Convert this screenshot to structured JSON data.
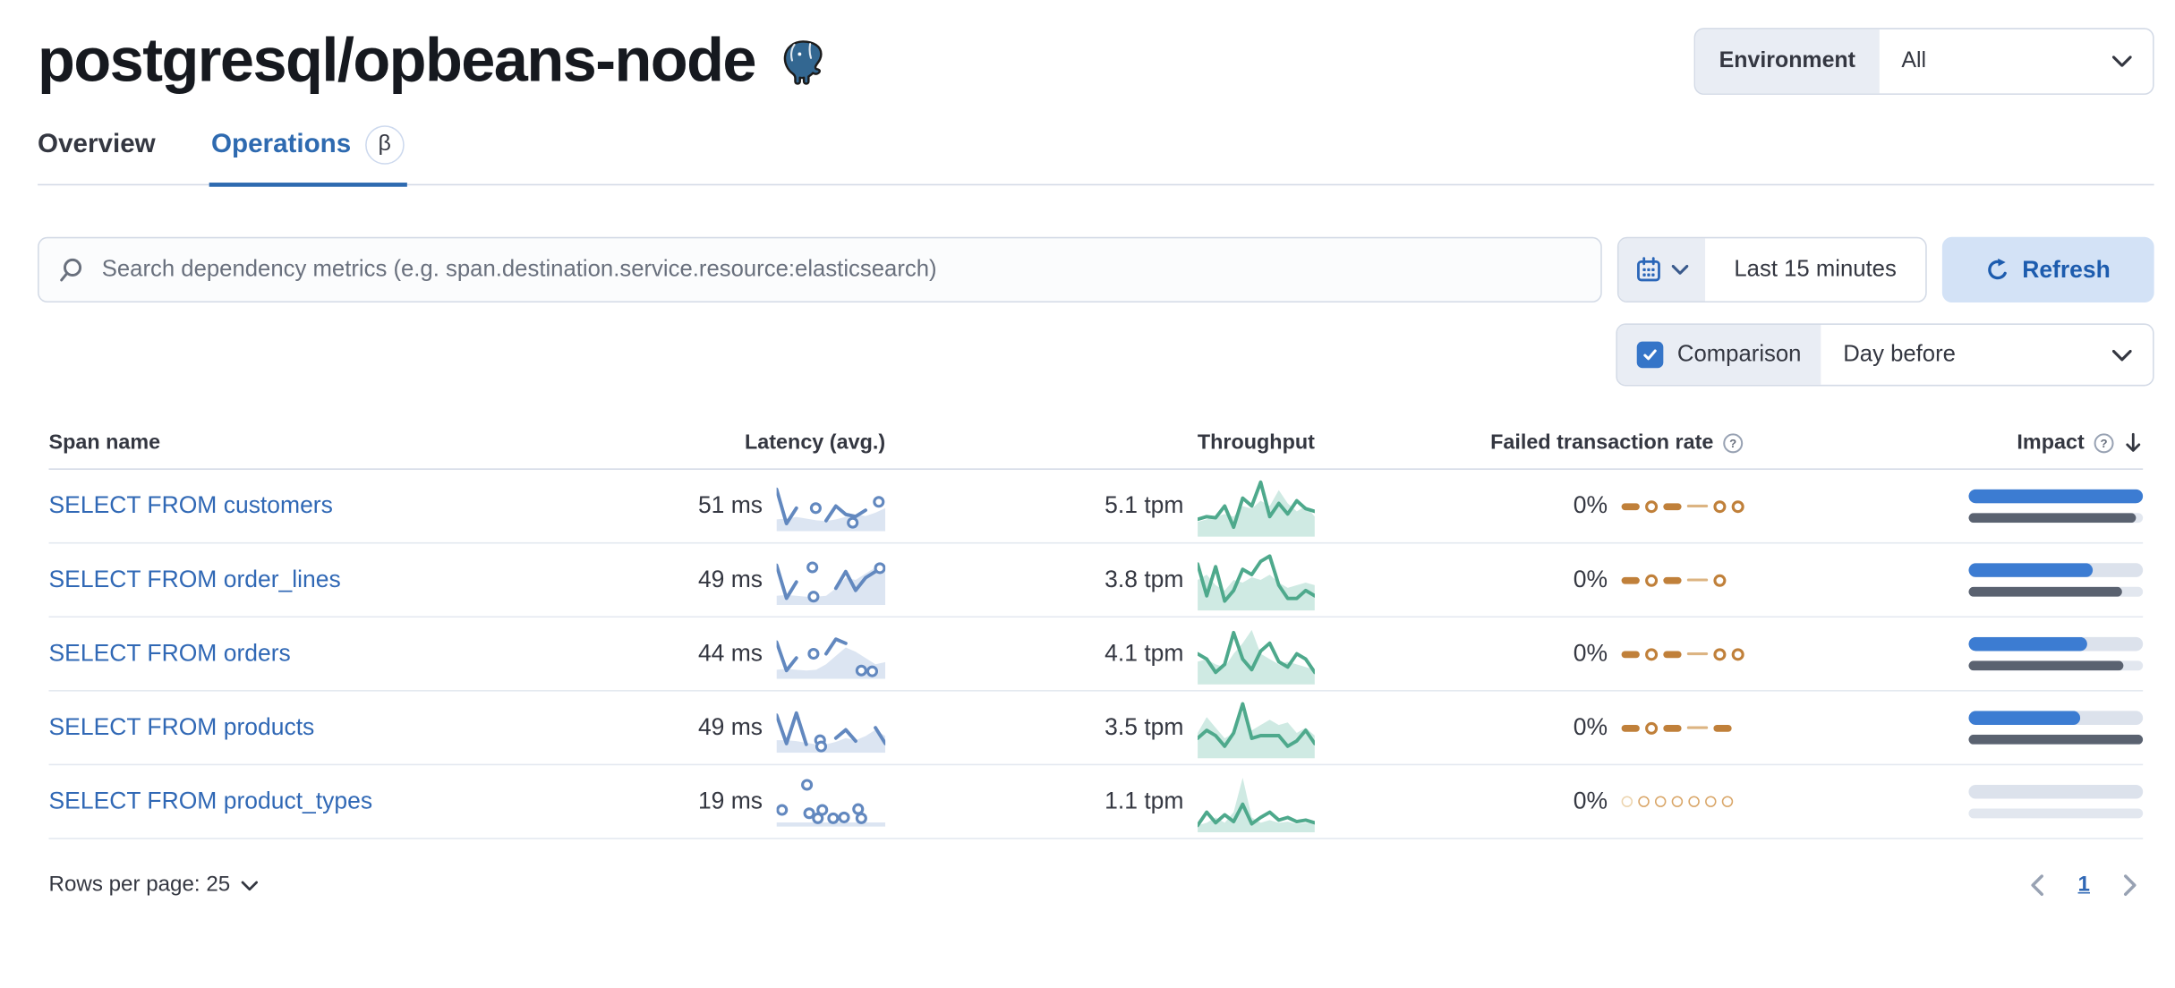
{
  "page": {
    "title": "postgresql/opbeans-node",
    "logo_icon": "postgresql-elephant-icon"
  },
  "environment": {
    "label": "Environment",
    "value": "All"
  },
  "tabs": [
    {
      "label": "Overview",
      "active": false
    },
    {
      "label": "Operations",
      "active": true,
      "badge": "β"
    }
  ],
  "search": {
    "placeholder": "Search dependency metrics (e.g. span.destination.service.resource:elasticsearch)",
    "icon": "search-icon"
  },
  "time": {
    "range": "Last 15 minutes",
    "refresh_label": "Refresh",
    "icons": [
      "calendar-icon",
      "chevron-down-icon",
      "refresh-icon"
    ]
  },
  "comparison": {
    "label": "Comparison",
    "checked": true,
    "value": "Day before"
  },
  "colors": {
    "primary_blue": "#2e6ab0",
    "link_blue": "#3068b5",
    "impact_bar_current": "#3c7cd2",
    "impact_bar_previous": "#5a6270",
    "latency_spark": "#6288bf",
    "throughput_spark": "#54b399",
    "failed_spark": "#c0803a",
    "refresh_bg": "#d3e2f6",
    "prepend_bg": "#e9edf4",
    "border": "#d3dae6"
  },
  "table": {
    "columns": [
      "Span name",
      "Latency (avg.)",
      "Throughput",
      "Failed transaction rate",
      "Impact"
    ],
    "sorted_by": "Impact",
    "sort_direction": "desc",
    "rows": [
      {
        "span_name": "SELECT FROM customers",
        "latency": "51 ms",
        "throughput": "5.1 tpm",
        "failed_rate": "0%",
        "impact_current": 1.0,
        "impact_previous": 0.96,
        "latency_spark": {
          "line": [
            0.9,
            0.08,
            0.45,
            null,
            null,
            0.15,
            0.5,
            0.3,
            0.25,
            0.4,
            null,
            null
          ],
          "area": [
            0.18,
            0.2,
            0.24,
            0.2,
            0.16,
            0.14,
            0.18,
            0.24,
            0.3,
            0.26,
            0.34,
            0.45
          ],
          "dots": [
            [
              0.36,
              0.45
            ],
            [
              0.7,
              0.1
            ],
            [
              0.94,
              0.6
            ]
          ]
        },
        "throughput_spark": {
          "line": [
            0.25,
            0.3,
            0.28,
            0.5,
            0.1,
            0.65,
            0.5,
            0.95,
            0.3,
            0.55,
            0.35,
            0.6,
            0.45,
            0.4
          ],
          "area": [
            0.2,
            0.25,
            0.3,
            0.35,
            0.3,
            0.5,
            0.45,
            0.6,
            0.5,
            0.8,
            0.55,
            0.4,
            0.5,
            0.3
          ]
        },
        "failed_spark": [
          "dash",
          "circle",
          "dash",
          "thin",
          "circle",
          "circle"
        ]
      },
      {
        "span_name": "SELECT FROM order_lines",
        "latency": "49 ms",
        "throughput": "3.8 tpm",
        "failed_rate": "0%",
        "impact_current": 0.71,
        "impact_previous": 0.88,
        "latency_spark": {
          "line": [
            0.85,
            0.06,
            0.45,
            null,
            null,
            null,
            0.3,
            0.7,
            0.25,
            0.55,
            0.7,
            null
          ],
          "area": [
            0.12,
            0.14,
            0.12,
            0.1,
            0.1,
            0.12,
            0.3,
            0.55,
            0.5,
            0.65,
            0.8,
            0.85
          ],
          "dots": [
            [
              0.33,
              0.8
            ],
            [
              0.34,
              0.1
            ],
            [
              0.95,
              0.78
            ]
          ]
        },
        "throughput_spark": {
          "line": [
            0.8,
            0.2,
            0.75,
            0.1,
            0.3,
            0.7,
            0.6,
            0.85,
            0.95,
            0.4,
            0.15,
            0.15,
            0.3,
            0.2
          ],
          "area": [
            0.5,
            0.6,
            0.4,
            0.3,
            0.5,
            0.45,
            0.55,
            0.5,
            0.6,
            0.45,
            0.35,
            0.4,
            0.45,
            0.4
          ]
        },
        "failed_spark": [
          "dash",
          "circle",
          "dash",
          "thin",
          "circle"
        ]
      },
      {
        "span_name": "SELECT FROM orders",
        "latency": "44 ms",
        "throughput": "4.1 tpm",
        "failed_rate": "0%",
        "impact_current": 0.68,
        "impact_previous": 0.89,
        "latency_spark": {
          "line": [
            0.78,
            0.1,
            0.4,
            null,
            null,
            0.5,
            0.85,
            0.75,
            null,
            null,
            null,
            null
          ],
          "area": [
            0.12,
            0.14,
            0.12,
            0.1,
            0.12,
            0.25,
            0.45,
            0.65,
            0.55,
            0.4,
            0.25,
            0.3
          ],
          "dots": [
            [
              0.34,
              0.5
            ],
            [
              0.78,
              0.1
            ],
            [
              0.88,
              0.08
            ]
          ]
        },
        "throughput_spark": {
          "line": [
            0.5,
            0.4,
            0.15,
            0.3,
            0.9,
            0.4,
            0.2,
            0.55,
            0.7,
            0.35,
            0.25,
            0.5,
            0.4,
            0.15
          ],
          "area": [
            0.35,
            0.4,
            0.3,
            0.25,
            0.5,
            0.7,
            0.95,
            0.5,
            0.4,
            0.3,
            0.35,
            0.3,
            0.25,
            0.2
          ]
        },
        "failed_spark": [
          "dash",
          "circle",
          "dash",
          "thin",
          "circle",
          "circle"
        ]
      },
      {
        "span_name": "SELECT FROM products",
        "latency": "49 ms",
        "throughput": "3.5 tpm",
        "failed_rate": "0%",
        "impact_current": 0.64,
        "impact_previous": 1.0,
        "latency_spark": {
          "line": [
            0.8,
            0.12,
            0.85,
            0.1,
            null,
            null,
            0.25,
            0.45,
            0.18,
            null,
            0.5,
            0.12
          ],
          "area": [
            0.2,
            0.2,
            0.18,
            0.14,
            0.1,
            0.1,
            0.16,
            0.25,
            0.2,
            0.3,
            0.45,
            0.3
          ],
          "dots": [
            [
              0.4,
              0.2
            ],
            [
              0.41,
              0.05
            ]
          ]
        },
        "throughput_spark": {
          "line": [
            0.3,
            0.45,
            0.35,
            0.15,
            0.4,
            0.95,
            0.3,
            0.35,
            0.35,
            0.35,
            0.15,
            0.25,
            0.45,
            0.2
          ],
          "area": [
            0.4,
            0.7,
            0.5,
            0.3,
            0.4,
            0.8,
            0.45,
            0.55,
            0.65,
            0.55,
            0.6,
            0.4,
            0.5,
            0.35
          ]
        },
        "failed_spark": [
          "dash",
          "circle",
          "dash",
          "thin",
          "dash"
        ]
      },
      {
        "span_name": "SELECT FROM product_types",
        "latency": "19 ms",
        "throughput": "1.1 tpm",
        "failed_rate": "0%",
        "impact_current": 0.0,
        "impact_previous": 0.0,
        "latency_spark": {
          "line": [
            null,
            null,
            null,
            null,
            null,
            null,
            null,
            null,
            null,
            null,
            null,
            null
          ],
          "area": [
            0,
            0,
            0,
            0,
            0,
            0,
            0,
            0,
            0,
            0,
            0,
            0
          ],
          "dots": [
            [
              0.05,
              0.3
            ],
            [
              0.28,
              0.9
            ],
            [
              0.3,
              0.22
            ],
            [
              0.38,
              0.1
            ],
            [
              0.42,
              0.3
            ],
            [
              0.52,
              0.1
            ],
            [
              0.62,
              0.12
            ],
            [
              0.75,
              0.32
            ],
            [
              0.78,
              0.1
            ]
          ]
        },
        "throughput_spark": {
          "line": [
            0.05,
            0.3,
            0.1,
            0.25,
            0.12,
            0.45,
            0.08,
            0.2,
            0.3,
            0.15,
            0.2,
            0.12,
            0.15,
            0.1
          ],
          "area": [
            0.05,
            0.1,
            0.2,
            0.1,
            0.3,
            0.95,
            0.2,
            0.1,
            0.15,
            0.1,
            0.12,
            0.08,
            0.1,
            0.08
          ]
        },
        "failed_spark": [
          "dot-faded",
          "dot",
          "dot",
          "dot",
          "dot",
          "dot",
          "dot"
        ]
      }
    ]
  },
  "footer": {
    "rows_per_page": "Rows per page: 25",
    "page": "1"
  }
}
